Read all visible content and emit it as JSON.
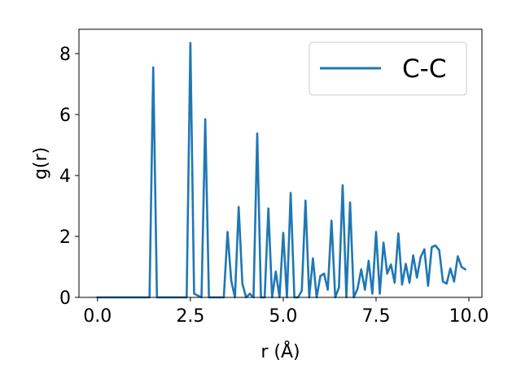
{
  "chart_data": {
    "type": "line",
    "xlabel": "r (Å)",
    "ylabel": "g(r)",
    "xlim": [
      -0.5,
      10.35
    ],
    "ylim": [
      0,
      8.8
    ],
    "xticks": [
      0.0,
      2.5,
      5.0,
      7.5,
      10.0
    ],
    "xtick_labels": [
      "0.0",
      "2.5",
      "5.0",
      "7.5",
      "10.0"
    ],
    "yticks": [
      0,
      2,
      4,
      6,
      8
    ],
    "ytick_labels": [
      "0",
      "2",
      "4",
      "6",
      "8"
    ],
    "grid": false,
    "legend_position": "top-right",
    "series": [
      {
        "name": "C-C",
        "color": "#1f77b4",
        "x": [
          0.0,
          1.4,
          1.5,
          1.6,
          1.7,
          2.4,
          2.5,
          2.6,
          2.8,
          2.9,
          3.0,
          3.1,
          3.3,
          3.4,
          3.5,
          3.6,
          3.7,
          3.8,
          3.9,
          4.0,
          4.1,
          4.2,
          4.3,
          4.4,
          4.5,
          4.6,
          4.7,
          4.8,
          4.9,
          5.0,
          5.1,
          5.2,
          5.3,
          5.4,
          5.5,
          5.6,
          5.7,
          5.8,
          5.9,
          6.0,
          6.1,
          6.2,
          6.3,
          6.4,
          6.5,
          6.6,
          6.7,
          6.8,
          6.9,
          7.0,
          7.1,
          7.2,
          7.3,
          7.4,
          7.5,
          7.6,
          7.7,
          7.8,
          7.9,
          8.0,
          8.1,
          8.2,
          8.3,
          8.4,
          8.5,
          8.6,
          8.7,
          8.8,
          8.9,
          9.0,
          9.1,
          9.2,
          9.3,
          9.4,
          9.5,
          9.6,
          9.7,
          9.8,
          9.9
        ],
        "y": [
          0.0,
          0.0,
          7.55,
          0.0,
          0.0,
          0.0,
          8.35,
          0.12,
          0.0,
          5.85,
          0.0,
          0.0,
          0.0,
          0.0,
          2.15,
          0.55,
          0.0,
          2.97,
          0.45,
          0.0,
          0.12,
          0.0,
          5.38,
          0.0,
          0.0,
          2.92,
          0.0,
          0.85,
          0.0,
          2.12,
          0.0,
          3.43,
          0.0,
          0.0,
          0.22,
          3.18,
          0.0,
          1.28,
          0.0,
          0.7,
          0.78,
          0.25,
          2.52,
          0.0,
          0.32,
          3.68,
          0.0,
          3.12,
          0.0,
          0.28,
          0.92,
          0.25,
          1.2,
          0.12,
          2.15,
          0.12,
          1.8,
          0.78,
          1.08,
          0.48,
          2.1,
          0.42,
          1.1,
          0.48,
          1.38,
          0.65,
          1.32,
          1.58,
          0.38,
          1.65,
          1.7,
          1.55,
          0.52,
          0.45,
          0.95,
          0.52,
          1.35,
          1.0,
          0.92
        ]
      }
    ]
  }
}
